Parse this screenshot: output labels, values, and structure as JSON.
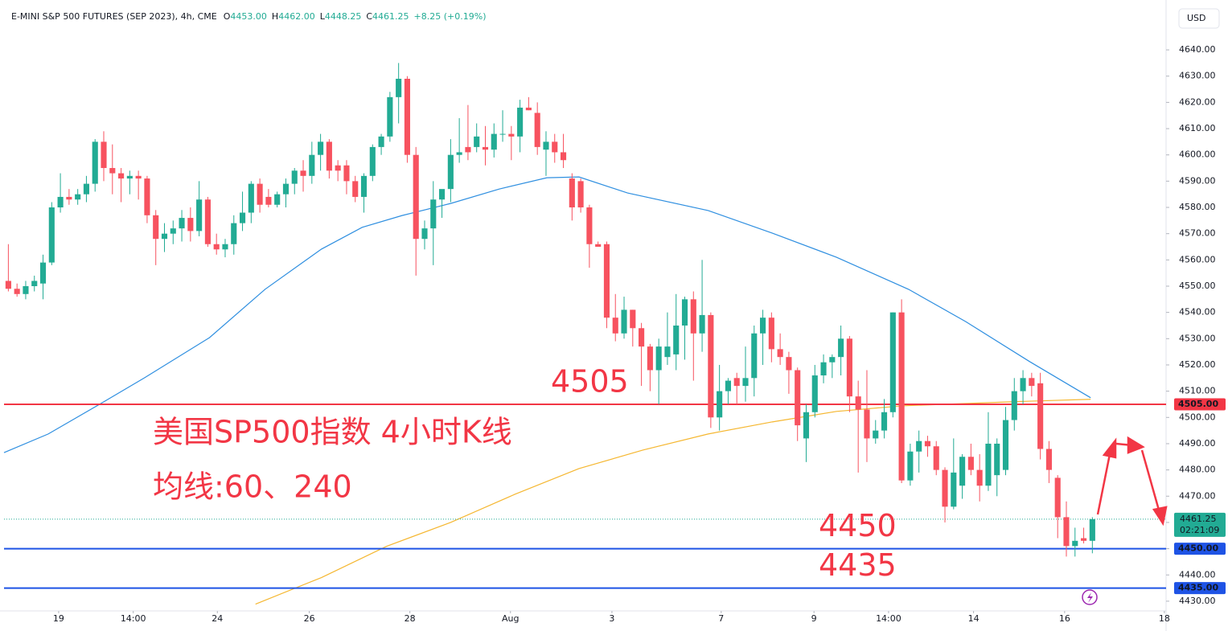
{
  "chart_data": {
    "type": "candlestick",
    "title": "E-MINI S&P 500 FUTURES (SEP 2023), 4h, CME",
    "ohlc_header": [
      {
        "key": "O",
        "value": "4453.00"
      },
      {
        "key": "H",
        "value": "4462.00"
      },
      {
        "key": "L",
        "value": "4448.25"
      },
      {
        "key": "C",
        "value": "4461.25"
      }
    ],
    "change": "+8.25 (+0.19%)",
    "currency": "USD",
    "up_color": "#22ab94",
    "down_color": "#f7525f",
    "ohlc": [
      [
        4552,
        4566,
        4548,
        4549
      ],
      [
        4549,
        4551,
        4546,
        4547
      ],
      [
        4547,
        4552,
        4545,
        4550
      ],
      [
        4550,
        4554,
        4548,
        4552
      ],
      [
        4551,
        4562,
        4545,
        4559
      ],
      [
        4559,
        4582,
        4558,
        4580
      ],
      [
        4580,
        4593,
        4578,
        4584
      ],
      [
        4584,
        4587,
        4581,
        4583
      ],
      [
        4583,
        4587,
        4581,
        4585
      ],
      [
        4585,
        4592,
        4582,
        4589
      ],
      [
        4589,
        4606,
        4586,
        4605
      ],
      [
        4605,
        4609,
        4590,
        4595
      ],
      [
        4595,
        4604,
        4585,
        4593
      ],
      [
        4593,
        4595,
        4582,
        4591
      ],
      [
        4591,
        4594,
        4585,
        4592
      ],
      [
        4592,
        4594,
        4583,
        4591
      ],
      [
        4591,
        4592,
        4574,
        4577
      ],
      [
        4577,
        4579,
        4558,
        4568
      ],
      [
        4568,
        4574,
        4563,
        4570
      ],
      [
        4570,
        4575,
        4566,
        4572
      ],
      [
        4572,
        4579,
        4567,
        4576
      ],
      [
        4576,
        4580,
        4567,
        4571
      ],
      [
        4571,
        4590,
        4569,
        4583
      ],
      [
        4583,
        4584,
        4565,
        4566
      ],
      [
        4566,
        4570,
        4562,
        4564
      ],
      [
        4564,
        4568,
        4561,
        4566
      ],
      [
        4566,
        4577,
        4562,
        4574
      ],
      [
        4574,
        4586,
        4571,
        4578
      ],
      [
        4578,
        4590,
        4574,
        4589
      ],
      [
        4589,
        4591,
        4578,
        4581
      ],
      [
        4584,
        4587,
        4580,
        4581
      ],
      [
        4581,
        4586,
        4580,
        4585
      ],
      [
        4585,
        4591,
        4580,
        4589
      ],
      [
        4589,
        4595,
        4585,
        4594
      ],
      [
        4594,
        4598,
        4586,
        4592
      ],
      [
        4592,
        4605,
        4589,
        4600
      ],
      [
        4600,
        4608,
        4594,
        4605
      ],
      [
        4605,
        4606,
        4591,
        4594
      ],
      [
        4596,
        4598,
        4590,
        4594
      ],
      [
        4596,
        4598,
        4585,
        4590
      ],
      [
        4590,
        4592,
        4582,
        4584
      ],
      [
        4584,
        4593,
        4578,
        4592
      ],
      [
        4592,
        4604,
        4590,
        4603
      ],
      [
        4603,
        4608,
        4600,
        4607
      ],
      [
        4607,
        4624,
        4605,
        4622
      ],
      [
        4622,
        4635,
        4612,
        4629
      ],
      [
        4629,
        4630,
        4597,
        4600
      ],
      [
        4600,
        4603,
        4554,
        4568
      ],
      [
        4568,
        4575,
        4564,
        4572
      ],
      [
        4572,
        4590,
        4558,
        4583
      ],
      [
        4583,
        4586,
        4576,
        4587
      ],
      [
        4587,
        4606,
        4582,
        4600
      ],
      [
        4600,
        4614,
        4597,
        4601
      ],
      [
        4603,
        4619,
        4598,
        4601
      ],
      [
        4603,
        4612,
        4601,
        4607
      ],
      [
        4603,
        4611,
        4596,
        4602
      ],
      [
        4602,
        4612,
        4599,
        4608
      ],
      [
        4608,
        4617,
        4605,
        4608
      ],
      [
        4608,
        4611,
        4598,
        4607
      ],
      [
        4607,
        4621,
        4601,
        4618
      ],
      [
        4618,
        4622,
        4617,
        4617
      ],
      [
        4616,
        4620,
        4600,
        4603
      ],
      [
        4602,
        4609,
        4592,
        4605
      ],
      [
        4605,
        4608,
        4597,
        4601
      ],
      [
        4601,
        4608,
        4595,
        4598
      ],
      [
        4591,
        4593,
        4575,
        4580
      ],
      [
        4590,
        4591,
        4578,
        4580
      ],
      [
        4580,
        4581,
        4557,
        4566
      ],
      [
        4566,
        4567,
        4565,
        4565
      ],
      [
        4566,
        4567,
        4534,
        4538
      ],
      [
        4538,
        4547,
        4529,
        4532
      ],
      [
        4532,
        4546,
        4530,
        4541
      ],
      [
        4541,
        4541,
        4527,
        4534
      ],
      [
        4534,
        4536,
        4512,
        4527
      ],
      [
        4527,
        4528,
        4510,
        4518
      ],
      [
        4518,
        4530,
        4505,
        4527
      ],
      [
        4523,
        4540,
        4520,
        4527
      ],
      [
        4524,
        4547,
        4518,
        4535
      ],
      [
        4535,
        4546,
        4522,
        4545
      ],
      [
        4545,
        4548,
        4514,
        4532
      ],
      [
        4532,
        4560,
        4525,
        4539
      ],
      [
        4539,
        4540,
        4496,
        4500
      ],
      [
        4500,
        4520,
        4495,
        4510
      ],
      [
        4510,
        4515,
        4505,
        4514
      ],
      [
        4515,
        4517,
        4505,
        4512
      ],
      [
        4512,
        4527,
        4506,
        4515
      ],
      [
        4515,
        4535,
        4508,
        4532
      ],
      [
        4532,
        4541,
        4520,
        4538
      ],
      [
        4538,
        4540,
        4521,
        4526
      ],
      [
        4526,
        4532,
        4520,
        4523
      ],
      [
        4523,
        4525,
        4509,
        4518
      ],
      [
        4518,
        4519,
        4491,
        4497
      ],
      [
        4492,
        4505,
        4483,
        4502
      ],
      [
        4502,
        4520,
        4500,
        4516
      ],
      [
        4516,
        4524,
        4513,
        4521
      ],
      [
        4521,
        4524,
        4515,
        4523
      ],
      [
        4523,
        4535,
        4516,
        4530
      ],
      [
        4530,
        4531,
        4502,
        4508
      ],
      [
        4508,
        4514,
        4479,
        4503
      ],
      [
        4503,
        4518,
        4483,
        4492
      ],
      [
        4492,
        4499,
        4490,
        4495
      ],
      [
        4495,
        4507,
        4492,
        4502
      ],
      [
        4502,
        4540,
        4500,
        4540
      ],
      [
        4540,
        4545,
        4475,
        4476
      ],
      [
        4476,
        4490,
        4474,
        4487
      ],
      [
        4487,
        4495,
        4479,
        4491
      ],
      [
        4491,
        4493,
        4485,
        4489
      ],
      [
        4489,
        4491,
        4478,
        4480
      ],
      [
        4480,
        4481,
        4460,
        4466
      ],
      [
        4466,
        4492,
        4465,
        4479
      ],
      [
        4474,
        4486,
        4469,
        4485
      ],
      [
        4485,
        4490,
        4478,
        4480
      ],
      [
        4480,
        4486,
        4468,
        4474
      ],
      [
        4474,
        4502,
        4472,
        4490
      ],
      [
        4478,
        4492,
        4470,
        4490
      ],
      [
        4480,
        4504,
        4478,
        4499
      ],
      [
        4499,
        4515,
        4495,
        4510
      ],
      [
        4510,
        4518,
        4505,
        4515
      ],
      [
        4515,
        4517,
        4508,
        4512
      ],
      [
        4513,
        4517,
        4484,
        4488
      ],
      [
        4488,
        4491,
        4475,
        4480
      ],
      [
        4477,
        4478,
        4454,
        4462
      ],
      [
        4462,
        4468,
        4447,
        4451
      ],
      [
        4451,
        4458,
        4447,
        4453
      ],
      [
        4454,
        4458,
        4452,
        4453
      ],
      [
        4453,
        4462,
        4448.25,
        4461.25
      ]
    ],
    "moving_averages": [
      {
        "color": "#2f8fe0",
        "x": [
          -0.5,
          4.6,
          10.2,
          15.7,
          23.2,
          29.6,
          36.1,
          40.8,
          45.4,
          51.0,
          56.6,
          62.1,
          65.8,
          71.4,
          80.7,
          88.1,
          95.5,
          103.8,
          110.4,
          117.8,
          124.8
        ],
        "values": [
          4486.6,
          4493.7,
          4504.4,
          4515.1,
          4530.4,
          4548.8,
          4564.1,
          4572.4,
          4576.9,
          4581.5,
          4587.0,
          4591.3,
          4591.6,
          4585.5,
          4578.8,
          4570.2,
          4561.0,
          4548.8,
          4536.5,
          4521.2,
          4507.5
        ]
      },
      {
        "color": "#f5b731",
        "x": [
          28.5,
          36.1,
          43.6,
          51.0,
          58.4,
          65.8,
          73.2,
          80.7,
          88.1,
          95.5,
          103.0,
          110.4,
          117.8,
          124.8
        ],
        "values": [
          4428.9,
          4439.0,
          4450.9,
          4460.0,
          4470.7,
          4480.5,
          4487.6,
          4493.7,
          4498.3,
          4502.3,
          4504.4,
          4505.3,
          4506.2,
          4506.9
        ]
      }
    ],
    "levels": [
      {
        "value": 4505,
        "label": "4505.00",
        "color": "#f23645"
      },
      {
        "value": 4450,
        "label": "4450.00",
        "color": "#1e53e5"
      },
      {
        "value": 4435,
        "label": "4435.00",
        "color": "#1e53e5"
      }
    ],
    "last_price": {
      "value": 4461.25,
      "label": "4461.25",
      "countdown": "02:21:09",
      "color": "#22ab94"
    },
    "annotations": [
      {
        "text": "4505",
        "value": 4505
      },
      {
        "text": "4450",
        "value": 4450
      },
      {
        "text": "4435",
        "value": 4435
      },
      {
        "text": "美国SP500指数 4小时K线"
      },
      {
        "text": "均线:60、240"
      }
    ],
    "xlim": [
      -0.5,
      133.5
    ],
    "xticks": [
      {
        "value": 5.8,
        "label": "19"
      },
      {
        "value": 14.4,
        "label": "14:00"
      },
      {
        "value": 24.1,
        "label": "24"
      },
      {
        "value": 34.7,
        "label": "26"
      },
      {
        "value": 46.3,
        "label": "28"
      },
      {
        "value": 57.9,
        "label": "Aug"
      },
      {
        "value": 69.6,
        "label": "3"
      },
      {
        "value": 82.2,
        "label": "7"
      },
      {
        "value": 92.9,
        "label": "9"
      },
      {
        "value": 101.5,
        "label": "14:00"
      },
      {
        "value": 111.3,
        "label": "14"
      },
      {
        "value": 121.8,
        "label": "16"
      },
      {
        "value": 133.3,
        "label": "18"
      }
    ],
    "ylim": [
      4426.3,
      4659.0
    ],
    "yticks": [
      {
        "value": 4430,
        "label": "4430.00"
      },
      {
        "value": 4440,
        "label": "4440.00"
      },
      {
        "value": 4450,
        "label": "4450.00"
      },
      {
        "value": 4460,
        "label": "4460.00"
      },
      {
        "value": 4470,
        "label": "4470.00"
      },
      {
        "value": 4480,
        "label": "4480.00"
      },
      {
        "value": 4490,
        "label": "4490.00"
      },
      {
        "value": 4500,
        "label": "4500.00"
      },
      {
        "value": 4510,
        "label": "4510.00"
      },
      {
        "value": 4520,
        "label": "4520.00"
      },
      {
        "value": 4530,
        "label": "4530.00"
      },
      {
        "value": 4540,
        "label": "4540.00"
      },
      {
        "value": 4550,
        "label": "4550.00"
      },
      {
        "value": 4560,
        "label": "4560.00"
      },
      {
        "value": 4570,
        "label": "4570.00"
      },
      {
        "value": 4580,
        "label": "4580.00"
      },
      {
        "value": 4590,
        "label": "4590.00"
      },
      {
        "value": 4600,
        "label": "4600.00"
      },
      {
        "value": 4610,
        "label": "4610.00"
      },
      {
        "value": 4620,
        "label": "4620.00"
      },
      {
        "value": 4630,
        "label": "4630.00"
      },
      {
        "value": 4640,
        "label": "4640.00"
      }
    ],
    "grid": false
  }
}
